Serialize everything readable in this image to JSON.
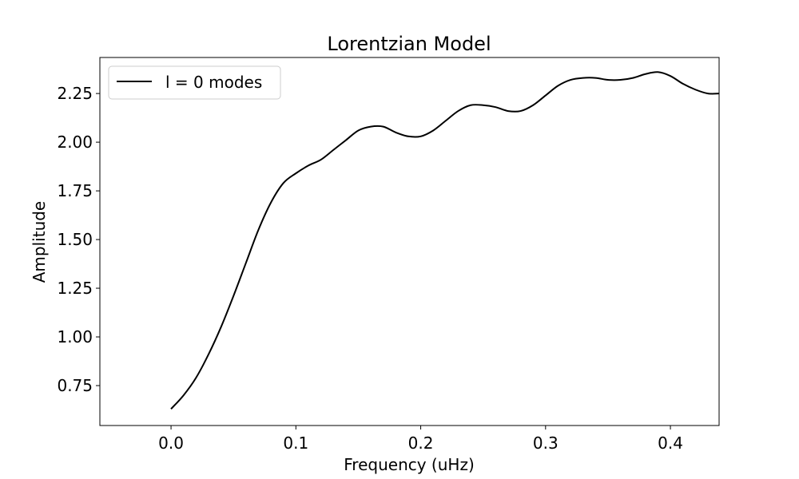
{
  "chart_data": {
    "type": "line",
    "title": "Lorentzian Model",
    "xlabel": "Frequency (uHz)",
    "ylabel": "Amplitude",
    "xlim": [
      -0.057,
      0.439
    ],
    "ylim": [
      0.545,
      2.435
    ],
    "grid": false,
    "legend_position": "top-left",
    "x_ticks": [
      {
        "value": 0.0,
        "label": "0.0"
      },
      {
        "value": 0.1,
        "label": "0.1"
      },
      {
        "value": 0.2,
        "label": "0.2"
      },
      {
        "value": 0.3,
        "label": "0.3"
      },
      {
        "value": 0.4,
        "label": "0.4"
      }
    ],
    "y_ticks": [
      {
        "value": 0.75,
        "label": "0.75"
      },
      {
        "value": 1.0,
        "label": "1.00"
      },
      {
        "value": 1.25,
        "label": "1.25"
      },
      {
        "value": 1.5,
        "label": "1.50"
      },
      {
        "value": 1.75,
        "label": "1.75"
      },
      {
        "value": 2.0,
        "label": "2.00"
      },
      {
        "value": 2.25,
        "label": "2.25"
      }
    ],
    "series": [
      {
        "name": "l = 0 modes",
        "color": "#000000",
        "points": [
          [
            0.0,
            0.63
          ],
          [
            0.01,
            0.7
          ],
          [
            0.02,
            0.79
          ],
          [
            0.03,
            0.91
          ],
          [
            0.04,
            1.05
          ],
          [
            0.05,
            1.21
          ],
          [
            0.06,
            1.38
          ],
          [
            0.07,
            1.55
          ],
          [
            0.08,
            1.69
          ],
          [
            0.09,
            1.79
          ],
          [
            0.1,
            1.84
          ],
          [
            0.11,
            1.88
          ],
          [
            0.12,
            1.91
          ],
          [
            0.13,
            1.96
          ],
          [
            0.14,
            2.01
          ],
          [
            0.15,
            2.06
          ],
          [
            0.16,
            2.08
          ],
          [
            0.17,
            2.08
          ],
          [
            0.18,
            2.05
          ],
          [
            0.19,
            2.03
          ],
          [
            0.2,
            2.03
          ],
          [
            0.21,
            2.06
          ],
          [
            0.22,
            2.11
          ],
          [
            0.23,
            2.16
          ],
          [
            0.24,
            2.19
          ],
          [
            0.25,
            2.19
          ],
          [
            0.26,
            2.18
          ],
          [
            0.27,
            2.16
          ],
          [
            0.28,
            2.16
          ],
          [
            0.29,
            2.19
          ],
          [
            0.3,
            2.24
          ],
          [
            0.31,
            2.29
          ],
          [
            0.32,
            2.32
          ],
          [
            0.33,
            2.33
          ],
          [
            0.34,
            2.33
          ],
          [
            0.35,
            2.32
          ],
          [
            0.36,
            2.32
          ],
          [
            0.37,
            2.33
          ],
          [
            0.38,
            2.35
          ],
          [
            0.39,
            2.36
          ],
          [
            0.4,
            2.34
          ],
          [
            0.41,
            2.3
          ],
          [
            0.42,
            2.27
          ],
          [
            0.43,
            2.25
          ],
          [
            0.439,
            2.25
          ]
        ]
      }
    ]
  }
}
